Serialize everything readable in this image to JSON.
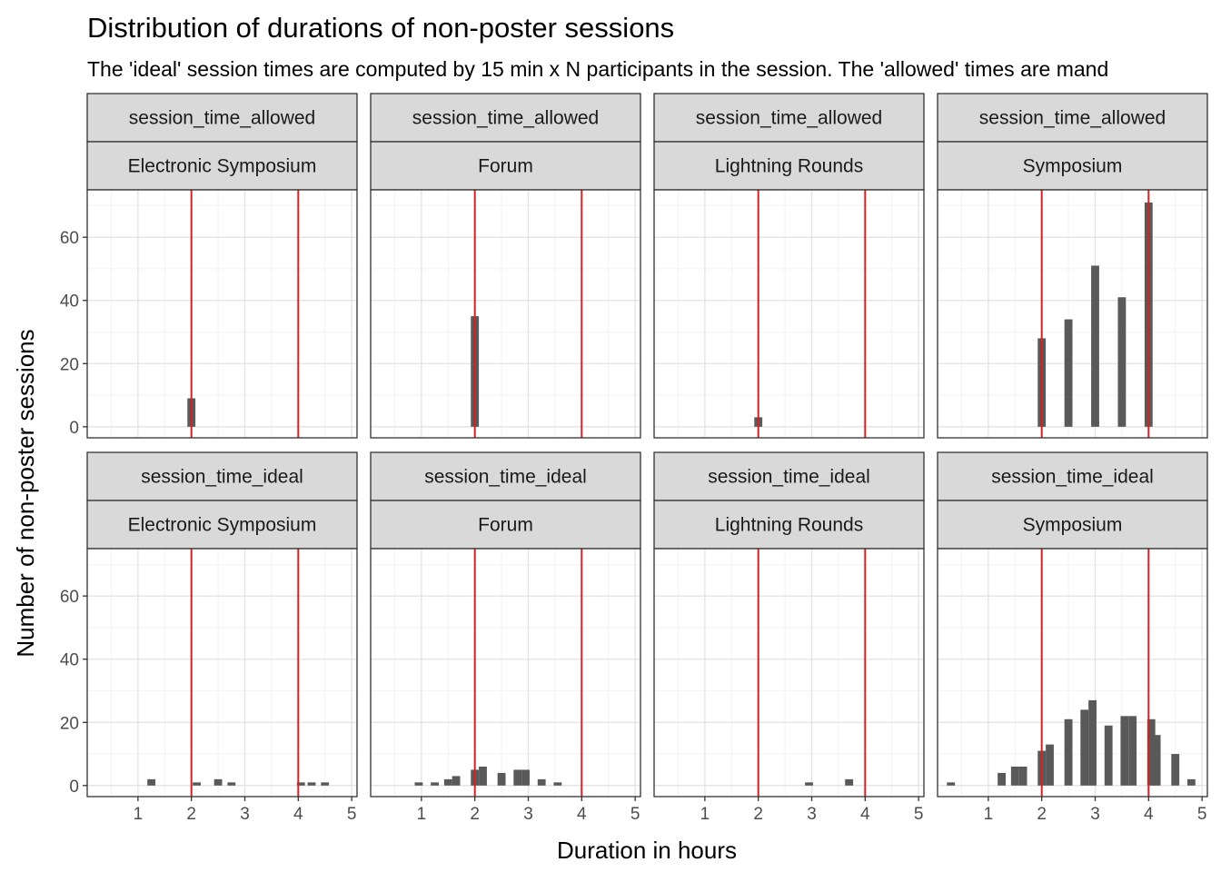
{
  "chart_data": {
    "type": "bar",
    "title": "Distribution of durations of non-poster sessions",
    "subtitle": "The 'ideal' session times are computed by 15 min x N participants in the session. The 'allowed' times are mand",
    "xlabel": "Duration in hours",
    "ylabel": "Number of non-poster sessions",
    "xlim": [
      0.05,
      5.1
    ],
    "ylim": [
      -3.5,
      75
    ],
    "x_ticks": [
      1,
      2,
      3,
      4,
      5
    ],
    "y_ticks": [
      0,
      20,
      40,
      60
    ],
    "grid": true,
    "bar_color": "#595959",
    "vline_color": "#d42222",
    "strip_fill": "#d9d9d9",
    "vlines": [
      2,
      4
    ],
    "bin_width": 0.15,
    "panels": [
      {
        "row": "session_time_allowed",
        "col": "Electronic Symposium",
        "x": [
          2
        ],
        "values": [
          9
        ]
      },
      {
        "row": "session_time_allowed",
        "col": "Forum",
        "x": [
          2
        ],
        "values": [
          35
        ]
      },
      {
        "row": "session_time_allowed",
        "col": "Lightning Rounds",
        "x": [
          2
        ],
        "values": [
          3
        ]
      },
      {
        "row": "session_time_allowed",
        "col": "Symposium",
        "x": [
          2,
          2.5,
          3,
          3.5,
          4
        ],
        "values": [
          28,
          34,
          51,
          41,
          71
        ]
      },
      {
        "row": "session_time_ideal",
        "col": "Electronic Symposium",
        "x": [
          1.25,
          2.1,
          2.5,
          2.75,
          4.05,
          4.25,
          4.5
        ],
        "values": [
          2,
          1,
          2,
          1,
          1,
          1,
          1
        ]
      },
      {
        "row": "session_time_ideal",
        "col": "Forum",
        "x": [
          0.95,
          1.25,
          1.5,
          1.65,
          2,
          2.15,
          2.5,
          2.8,
          2.95,
          3.25,
          3.55
        ],
        "values": [
          1,
          1,
          2,
          3,
          5,
          6,
          4,
          5,
          5,
          2,
          1
        ]
      },
      {
        "row": "session_time_ideal",
        "col": "Lightning Rounds",
        "x": [
          2.95,
          3.7
        ],
        "values": [
          1,
          2
        ]
      },
      {
        "row": "session_time_ideal",
        "col": "Symposium",
        "x": [
          0.3,
          1.25,
          1.5,
          1.65,
          2,
          2.15,
          2.5,
          2.8,
          2.95,
          3.25,
          3.55,
          3.7,
          4.05,
          4.15,
          4.5,
          4.8
        ],
        "values": [
          1,
          4,
          6,
          6,
          11,
          13,
          21,
          24,
          27,
          19,
          22,
          22,
          21,
          16,
          10,
          2
        ]
      }
    ]
  }
}
